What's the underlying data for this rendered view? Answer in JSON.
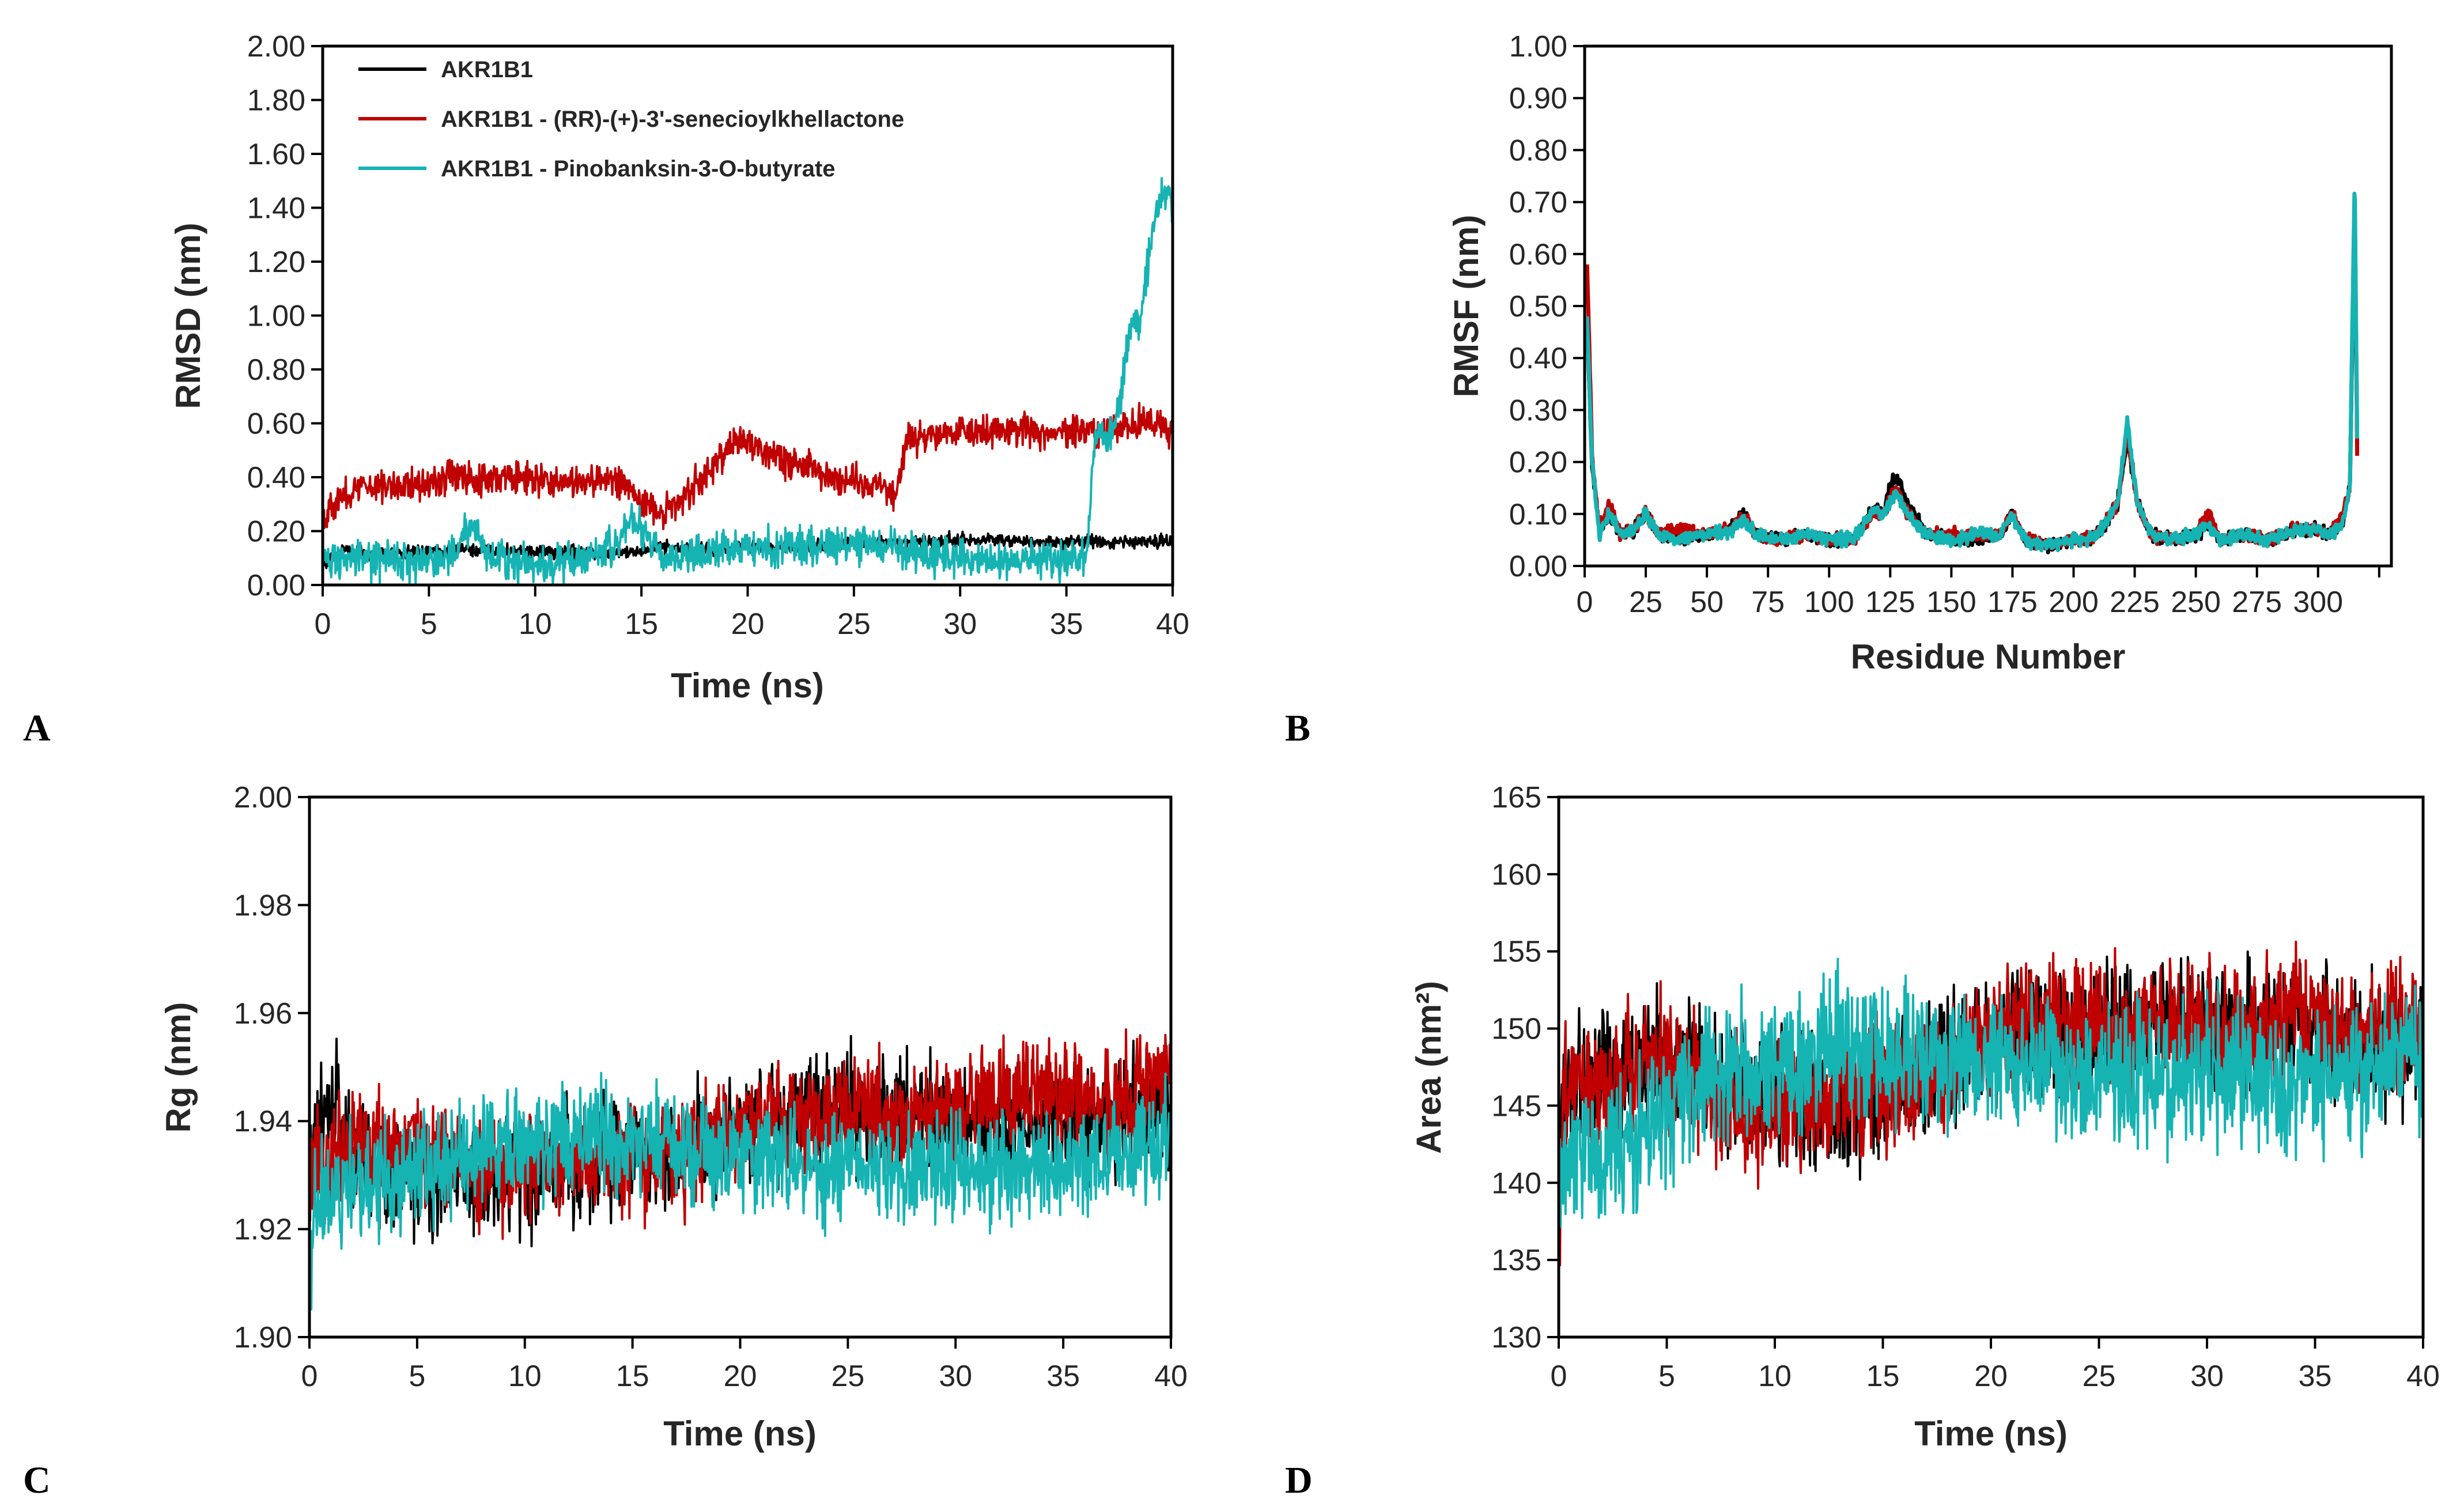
{
  "colors": {
    "AKR1B1": "#000000",
    "AKR1B1 - (RR)-(+)-3'-senecioylkhellactone": "#c00000",
    "AKR1B1 - Pinobanksin-3-O-butyrate": "#16b3b3"
  },
  "chart_data": [
    {
      "panel": "A",
      "type": "line",
      "title": "",
      "xlabel": "Time (ns)",
      "ylabel": "RMSD (nm)",
      "xlim": [
        0,
        40
      ],
      "ylim": [
        0,
        2
      ],
      "xticks": [
        "0",
        "5",
        "10",
        "15",
        "20",
        "25",
        "30",
        "35",
        "40"
      ],
      "yticks": [
        "0.00",
        "0.20",
        "0.40",
        "0.60",
        "0.80",
        "1.00",
        "1.20",
        "1.40",
        "1.60",
        "1.80",
        "2.00"
      ],
      "legend": {
        "position": "top-left",
        "entries": [
          "AKR1B1",
          "AKR1B1 - (RR)-(+)-3'-senecioylkhellactone",
          "AKR1B1 - Pinobanksin-3-O-butyrate"
        ]
      },
      "series": [
        {
          "name": "AKR1B1",
          "x": [
            0,
            1,
            2,
            4,
            6,
            8,
            10,
            12,
            14,
            16,
            18,
            20,
            22,
            24,
            26,
            28,
            30,
            32,
            34,
            36,
            38,
            40
          ],
          "y": [
            0.08,
            0.13,
            0.12,
            0.12,
            0.13,
            0.13,
            0.12,
            0.12,
            0.12,
            0.14,
            0.13,
            0.14,
            0.14,
            0.15,
            0.16,
            0.16,
            0.17,
            0.17,
            0.16,
            0.16,
            0.16,
            0.16
          ],
          "noise": 0.012
        },
        {
          "name": "AKR1B1 - (RR)-(+)-3'-senecioylkhellactone",
          "x": [
            0,
            1,
            2,
            4,
            6,
            8,
            10,
            12,
            14,
            15,
            16,
            18,
            19.5,
            20,
            22,
            24,
            26,
            27,
            27.5,
            28,
            30,
            32,
            34,
            36,
            38,
            39,
            40
          ],
          "y": [
            0.26,
            0.33,
            0.37,
            0.37,
            0.4,
            0.4,
            0.39,
            0.38,
            0.39,
            0.31,
            0.26,
            0.4,
            0.55,
            0.52,
            0.46,
            0.4,
            0.38,
            0.34,
            0.55,
            0.54,
            0.58,
            0.58,
            0.57,
            0.57,
            0.58,
            0.61,
            0.56
          ],
          "noise": 0.03
        },
        {
          "name": "AKR1B1 - Pinobanksin-3-O-butyrate",
          "x": [
            0,
            2,
            4,
            6,
            7,
            8,
            10,
            12,
            14,
            14.5,
            16,
            18,
            20,
            22,
            24,
            26,
            28,
            30,
            32,
            34,
            35.5,
            36,
            36.3,
            37,
            37.5,
            38,
            38.5,
            39,
            39.5,
            40
          ],
          "y": [
            0.1,
            0.09,
            0.09,
            0.1,
            0.22,
            0.1,
            0.08,
            0.09,
            0.16,
            0.26,
            0.1,
            0.12,
            0.14,
            0.14,
            0.15,
            0.15,
            0.12,
            0.1,
            0.09,
            0.1,
            0.1,
            0.12,
            0.52,
            0.55,
            0.68,
            0.96,
            1.0,
            1.3,
            1.45,
            1.42
          ],
          "noise": 0.035
        }
      ]
    },
    {
      "panel": "B",
      "type": "line",
      "title": "",
      "xlabel": "Residue Number",
      "ylabel": "RMSF (nm)",
      "xlim": [
        0,
        330
      ],
      "ylim": [
        0,
        1
      ],
      "xticks": [
        "0",
        "25",
        "50",
        "75",
        "100",
        "125",
        "150",
        "175",
        "200",
        "225",
        "250",
        "275",
        "300"
      ],
      "yticks": [
        "0.00",
        "0.10",
        "0.20",
        "0.30",
        "0.40",
        "0.50",
        "0.60",
        "0.70",
        "0.80",
        "0.90",
        "1.00"
      ],
      "series": [
        {
          "name": "AKR1B1",
          "x": [
            1,
            3,
            6,
            10,
            15,
            20,
            25,
            30,
            40,
            50,
            60,
            65,
            70,
            80,
            90,
            100,
            110,
            118,
            122,
            126,
            128,
            132,
            140,
            150,
            160,
            170,
            175,
            180,
            190,
            200,
            205,
            210,
            218,
            222,
            226,
            232,
            240,
            250,
            255,
            260,
            270,
            280,
            290,
            300,
            305,
            310,
            313,
            315,
            316
          ],
          "y": [
            0.47,
            0.2,
            0.07,
            0.1,
            0.06,
            0.07,
            0.1,
            0.06,
            0.05,
            0.06,
            0.07,
            0.1,
            0.06,
            0.05,
            0.06,
            0.05,
            0.05,
            0.11,
            0.1,
            0.17,
            0.17,
            0.12,
            0.06,
            0.05,
            0.05,
            0.06,
            0.1,
            0.05,
            0.04,
            0.05,
            0.05,
            0.06,
            0.12,
            0.25,
            0.12,
            0.06,
            0.05,
            0.06,
            0.08,
            0.05,
            0.06,
            0.05,
            0.07,
            0.07,
            0.06,
            0.08,
            0.15,
            0.7,
            0.23
          ],
          "noise": 0.006
        },
        {
          "name": "AKR1B1 - (RR)-(+)-3'-senecioylkhellactone",
          "x": [
            1,
            3,
            6,
            10,
            15,
            20,
            25,
            30,
            40,
            50,
            60,
            65,
            70,
            80,
            90,
            100,
            110,
            118,
            122,
            126,
            128,
            132,
            140,
            150,
            160,
            170,
            175,
            180,
            190,
            200,
            205,
            210,
            218,
            222,
            226,
            232,
            240,
            250,
            255,
            260,
            270,
            280,
            290,
            300,
            305,
            310,
            313,
            315,
            316
          ],
          "y": [
            0.58,
            0.22,
            0.07,
            0.12,
            0.06,
            0.07,
            0.1,
            0.06,
            0.07,
            0.06,
            0.07,
            0.1,
            0.06,
            0.05,
            0.06,
            0.05,
            0.05,
            0.1,
            0.1,
            0.14,
            0.15,
            0.1,
            0.06,
            0.06,
            0.06,
            0.06,
            0.1,
            0.05,
            0.04,
            0.05,
            0.05,
            0.06,
            0.12,
            0.26,
            0.12,
            0.06,
            0.05,
            0.06,
            0.1,
            0.05,
            0.06,
            0.05,
            0.07,
            0.07,
            0.06,
            0.1,
            0.15,
            0.72,
            0.22
          ],
          "noise": 0.006
        },
        {
          "name": "AKR1B1 - Pinobanksin-3-O-butyrate",
          "x": [
            1,
            3,
            6,
            10,
            15,
            20,
            25,
            30,
            40,
            50,
            60,
            65,
            70,
            80,
            90,
            100,
            110,
            118,
            122,
            126,
            128,
            132,
            140,
            150,
            160,
            170,
            175,
            180,
            190,
            200,
            205,
            210,
            218,
            222,
            226,
            232,
            240,
            250,
            255,
            260,
            270,
            280,
            290,
            300,
            305,
            310,
            313,
            315,
            316
          ],
          "y": [
            0.48,
            0.2,
            0.06,
            0.1,
            0.06,
            0.07,
            0.1,
            0.06,
            0.05,
            0.06,
            0.07,
            0.09,
            0.06,
            0.05,
            0.06,
            0.05,
            0.05,
            0.11,
            0.1,
            0.13,
            0.14,
            0.1,
            0.06,
            0.05,
            0.06,
            0.06,
            0.1,
            0.05,
            0.04,
            0.05,
            0.05,
            0.06,
            0.12,
            0.28,
            0.12,
            0.06,
            0.05,
            0.06,
            0.08,
            0.05,
            0.06,
            0.05,
            0.07,
            0.07,
            0.06,
            0.08,
            0.15,
            0.75,
            0.24
          ],
          "noise": 0.006
        }
      ]
    },
    {
      "panel": "C",
      "type": "line",
      "title": "",
      "xlabel": "Time (ns)",
      "ylabel": "Rg (nm)",
      "xlim": [
        0,
        40
      ],
      "ylim": [
        1.9,
        2.0
      ],
      "xticks": [
        "0",
        "5",
        "10",
        "15",
        "20",
        "25",
        "30",
        "35",
        "40"
      ],
      "yticks": [
        "1.90",
        "1.92",
        "1.94",
        "1.96",
        "1.98",
        "2.00"
      ],
      "series": [
        {
          "name": "AKR1B1",
          "x": [
            0,
            1,
            2,
            4,
            6,
            8,
            10,
            12,
            14,
            16,
            18,
            20,
            22,
            24,
            26,
            28,
            30,
            32,
            34,
            36,
            38,
            40
          ],
          "y": [
            1.935,
            1.943,
            1.935,
            1.93,
            1.93,
            1.93,
            1.93,
            1.932,
            1.933,
            1.932,
            1.935,
            1.94,
            1.94,
            1.943,
            1.942,
            1.943,
            1.94,
            1.938,
            1.94,
            1.94,
            1.941,
            1.942
          ],
          "noise": 0.005
        },
        {
          "name": "AKR1B1 - (RR)-(+)-3'-senecioylkhellactone",
          "x": [
            0,
            2,
            4,
            6,
            8,
            10,
            12,
            14,
            16,
            18,
            20,
            22,
            24,
            26,
            28,
            30,
            32,
            34,
            36,
            38,
            40
          ],
          "y": [
            1.93,
            1.936,
            1.935,
            1.935,
            1.93,
            1.932,
            1.932,
            1.933,
            1.933,
            1.935,
            1.94,
            1.94,
            1.942,
            1.942,
            1.941,
            1.942,
            1.944,
            1.945,
            1.944,
            1.945,
            1.948
          ],
          "noise": 0.005
        },
        {
          "name": "AKR1B1 - Pinobanksin-3-O-butyrate",
          "x": [
            0,
            0.2,
            1,
            2,
            4,
            6,
            8,
            10,
            12,
            14,
            16,
            18,
            20,
            22,
            24,
            26,
            28,
            30,
            32,
            34,
            36,
            38,
            40
          ],
          "y": [
            1.902,
            1.925,
            1.926,
            1.928,
            1.93,
            1.933,
            1.935,
            1.936,
            1.937,
            1.937,
            1.935,
            1.934,
            1.934,
            1.933,
            1.931,
            1.932,
            1.931,
            1.932,
            1.931,
            1.932,
            1.933,
            1.934,
            1.936
          ],
          "noise": 0.005
        }
      ]
    },
    {
      "panel": "D",
      "type": "line",
      "title": "",
      "xlabel": "Time (ns)",
      "ylabel": "Area (nm²)",
      "xlim": [
        0,
        40
      ],
      "ylim": [
        130,
        165
      ],
      "xticks": [
        "0",
        "5",
        "10",
        "15",
        "20",
        "25",
        "30",
        "35",
        "40"
      ],
      "yticks": [
        "130",
        "135",
        "140",
        "145",
        "150",
        "155",
        "160",
        "165"
      ],
      "series": [
        {
          "name": "AKR1B1",
          "x": [
            0,
            2,
            4,
            6,
            8,
            10,
            12,
            14,
            16,
            18,
            20,
            22,
            24,
            26,
            28,
            30,
            32,
            34,
            36,
            38,
            40
          ],
          "y": [
            145,
            147,
            148,
            148,
            146,
            145,
            145,
            145,
            146,
            148,
            149,
            150,
            150,
            150,
            151,
            150,
            150,
            150,
            149,
            149,
            149
          ],
          "noise": 2.0
        },
        {
          "name": "AKR1B1 - (RR)-(+)-3'-senecioylkhellactone",
          "x": [
            0,
            0.2,
            1,
            2,
            4,
            6,
            8,
            10,
            12,
            14,
            16,
            18,
            20,
            22,
            24,
            26,
            28,
            30,
            32,
            34,
            36,
            38,
            40
          ],
          "y": [
            136,
            146,
            146,
            147,
            148,
            147,
            145,
            145,
            145,
            146,
            146,
            147,
            149,
            151,
            150,
            150,
            151,
            150,
            150,
            151,
            150,
            150,
            150
          ],
          "noise": 2.0
        },
        {
          "name": "AKR1B1 - Pinobanksin-3-O-butyrate",
          "x": [
            0,
            1,
            2,
            4,
            6,
            8,
            10,
            12,
            14,
            16,
            18,
            20,
            22,
            24,
            26,
            28,
            30,
            32,
            34,
            36,
            38,
            40
          ],
          "y": [
            140,
            142,
            142,
            144,
            146,
            147,
            147,
            149,
            149,
            148,
            148,
            148,
            148,
            147,
            147,
            147,
            147,
            147,
            146,
            147,
            148,
            149
          ],
          "noise": 2.2
        }
      ]
    }
  ]
}
